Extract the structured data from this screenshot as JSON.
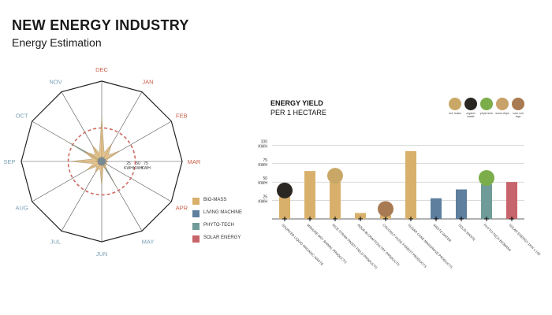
{
  "header": {
    "title": "NEW ENERGY INDUSTRY",
    "subtitle": "Energy Estimation"
  },
  "chart_data": [
    {
      "type": "radar",
      "axes": [
        "DEC",
        "JAN",
        "FEB",
        "MAR",
        "APR",
        "MAY",
        "JUN",
        "JUL",
        "AUG",
        "SEP",
        "OCT",
        "NOV"
      ],
      "axis_colors": [
        "#c9604b",
        "#c9604b",
        "#c9604b",
        "#c9604b",
        "#c9604b",
        "#7aa0b5",
        "#7aa0b5",
        "#7aa0b5",
        "#7aa0b5",
        "#7aa0b5",
        "#7aa0b5",
        "#7aa0b5"
      ],
      "ring_labels": [
        "25 KWH",
        "50 KWH",
        "75 KWH"
      ],
      "reference_ring": 75,
      "rmax": 180,
      "series": [
        {
          "name": "BIO-MASS",
          "color": "#d9b06b",
          "values": [
            100,
            45,
            48,
            15,
            15,
            20,
            55,
            30,
            40,
            70,
            45,
            42
          ]
        },
        {
          "name": "LIVING MACHINE",
          "color": "#5e7f9e",
          "values": [
            12,
            10,
            10,
            12,
            10,
            10,
            10,
            10,
            10,
            10,
            10,
            10
          ]
        },
        {
          "name": "PHYTO-TECH",
          "color": "#6f9c98",
          "values": [
            5,
            5,
            5,
            5,
            5,
            70,
            10,
            5,
            5,
            15,
            100,
            10
          ]
        },
        {
          "name": "SOLAR ENERGY",
          "color": "#c8646b",
          "values": []
        }
      ]
    },
    {
      "type": "bar",
      "title": "ENERGY YIELD",
      "subtitle": "PER 1 HECTARE",
      "y_ticks": [
        {
          "value": 25,
          "label": "25 KWH"
        },
        {
          "value": 50,
          "label": "50 KWH"
        },
        {
          "value": 75,
          "label": "75 KWH"
        },
        {
          "value": 100,
          "label": "100 KWH"
        }
      ],
      "ylim": [
        0,
        110
      ],
      "categories": [
        "SOURCED LIQUID ORGANIC WASTE",
        "MANURE DRY ANIMAL PRODUCTS",
        "RICE STRAW PADDY FIELD PRODUCTS",
        "AQUA-BLOOM POULTRY PRODUCTS",
        "COCONUT HUSK FOREST PRODUCTS",
        "SUGAR CANE MANGROVE PRODUCTS",
        "WASTE WATER",
        "SOLID WASTE",
        "PHYTO-TECH BIOMASS",
        "SOLAR ENERGY 1KW x 100"
      ],
      "values": [
        30,
        65,
        50,
        8,
        5,
        92,
        28,
        40,
        47,
        50
      ],
      "colors": [
        "#d9b06b",
        "#d9b06b",
        "#d9b06b",
        "#d9b06b",
        "#d9b06b",
        "#d9b06b",
        "#5e7f9e",
        "#5e7f9e",
        "#6f9c98",
        "#c8646b"
      ]
    }
  ],
  "legend": [
    "BIO-MASS",
    "LIVING MACHINE",
    "PHYTO-TECH",
    "SOLAR ENERGY"
  ],
  "tiles": [
    {
      "label": "rice husks",
      "color": "#c9a867"
    },
    {
      "label": "organic waste",
      "color": "#2a2622"
    },
    {
      "label": "phyto tech",
      "color": "#7cad4b"
    },
    {
      "label": "wood chips",
      "color": "#c9a16a"
    },
    {
      "label": "coco coir logs",
      "color": "#a87a52"
    }
  ]
}
